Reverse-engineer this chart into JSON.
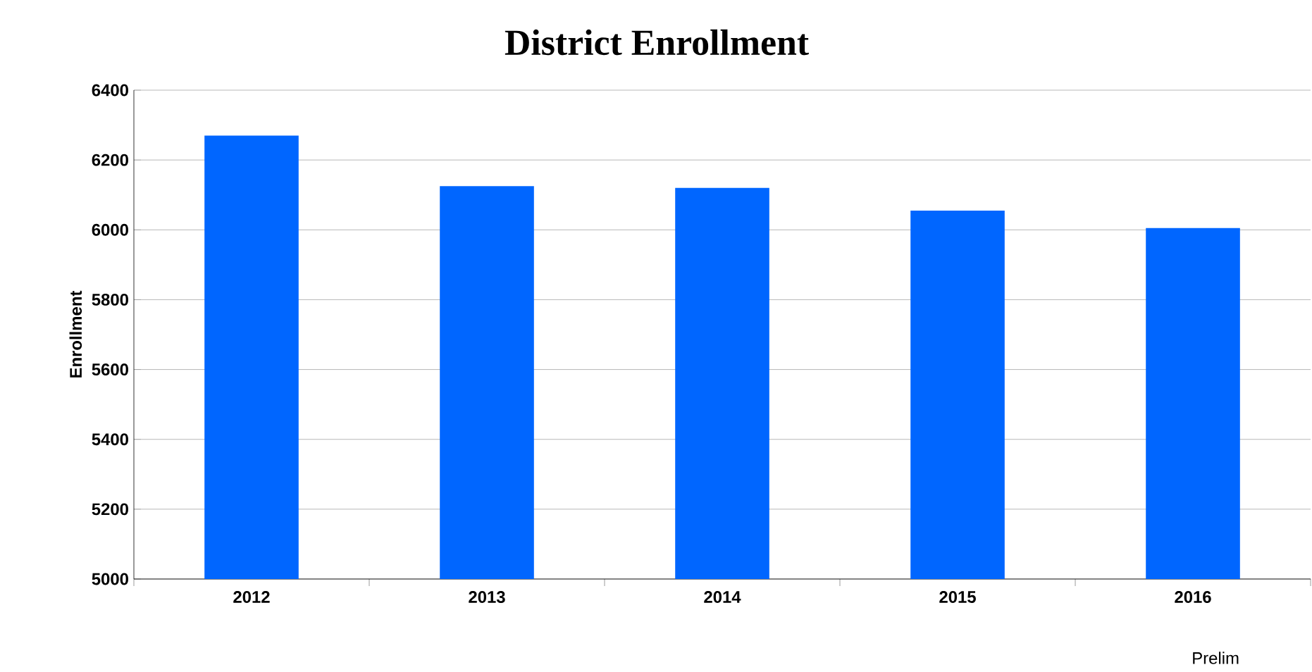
{
  "chart_data": {
    "type": "bar",
    "title": "District Enrollment",
    "ylabel": "Enrollment",
    "categories": [
      "2012",
      "2013",
      "2014",
      "2015",
      "2016"
    ],
    "values": [
      6270,
      6125,
      6120,
      6055,
      6005
    ],
    "color": "#0066ff",
    "ylim": [
      5000,
      6400
    ],
    "yticks": [
      5000,
      5200,
      5400,
      5600,
      5800,
      6000,
      6200,
      6400
    ],
    "grid": "y",
    "annotations": [
      "Prelim"
    ]
  }
}
